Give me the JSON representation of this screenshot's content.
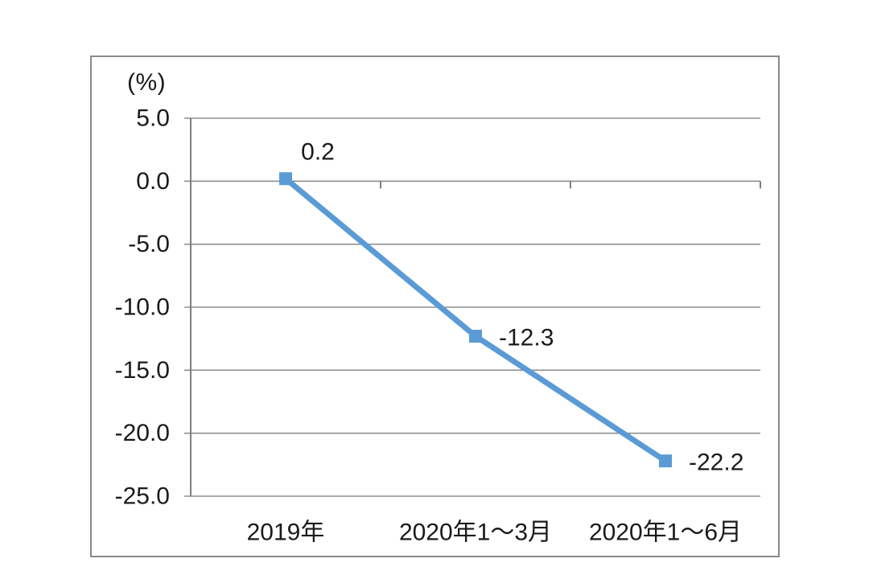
{
  "chart_data": {
    "type": "line",
    "title": "",
    "ylabel": "(%)",
    "categories": [
      "2019年",
      "2020年1～3月",
      "2020年1～6月"
    ],
    "values": [
      0.2,
      -12.3,
      -22.2
    ],
    "data_labels": [
      "0.2",
      "-12.3",
      "-22.2"
    ],
    "y_ticks": [
      5.0,
      0.0,
      -5.0,
      -10.0,
      -15.0,
      -20.0,
      -25.0
    ],
    "y_tick_labels": [
      "5.0",
      "0.0",
      "-5.0",
      "-10.0",
      "-15.0",
      "-20.0",
      "-25.0"
    ],
    "ylim": [
      -25.0,
      5.0
    ],
    "y_tick_interval": 5.0,
    "grid": true,
    "legend": "none",
    "marker": "square",
    "colors": {
      "line": "#5B9BD5",
      "marker": "#5B9BD5",
      "gridline": "#8f8f8f",
      "axis": "#7f7f7f",
      "text": "#1a1a1a",
      "frame_border": "#8a8a8a",
      "background": "#ffffff"
    }
  }
}
